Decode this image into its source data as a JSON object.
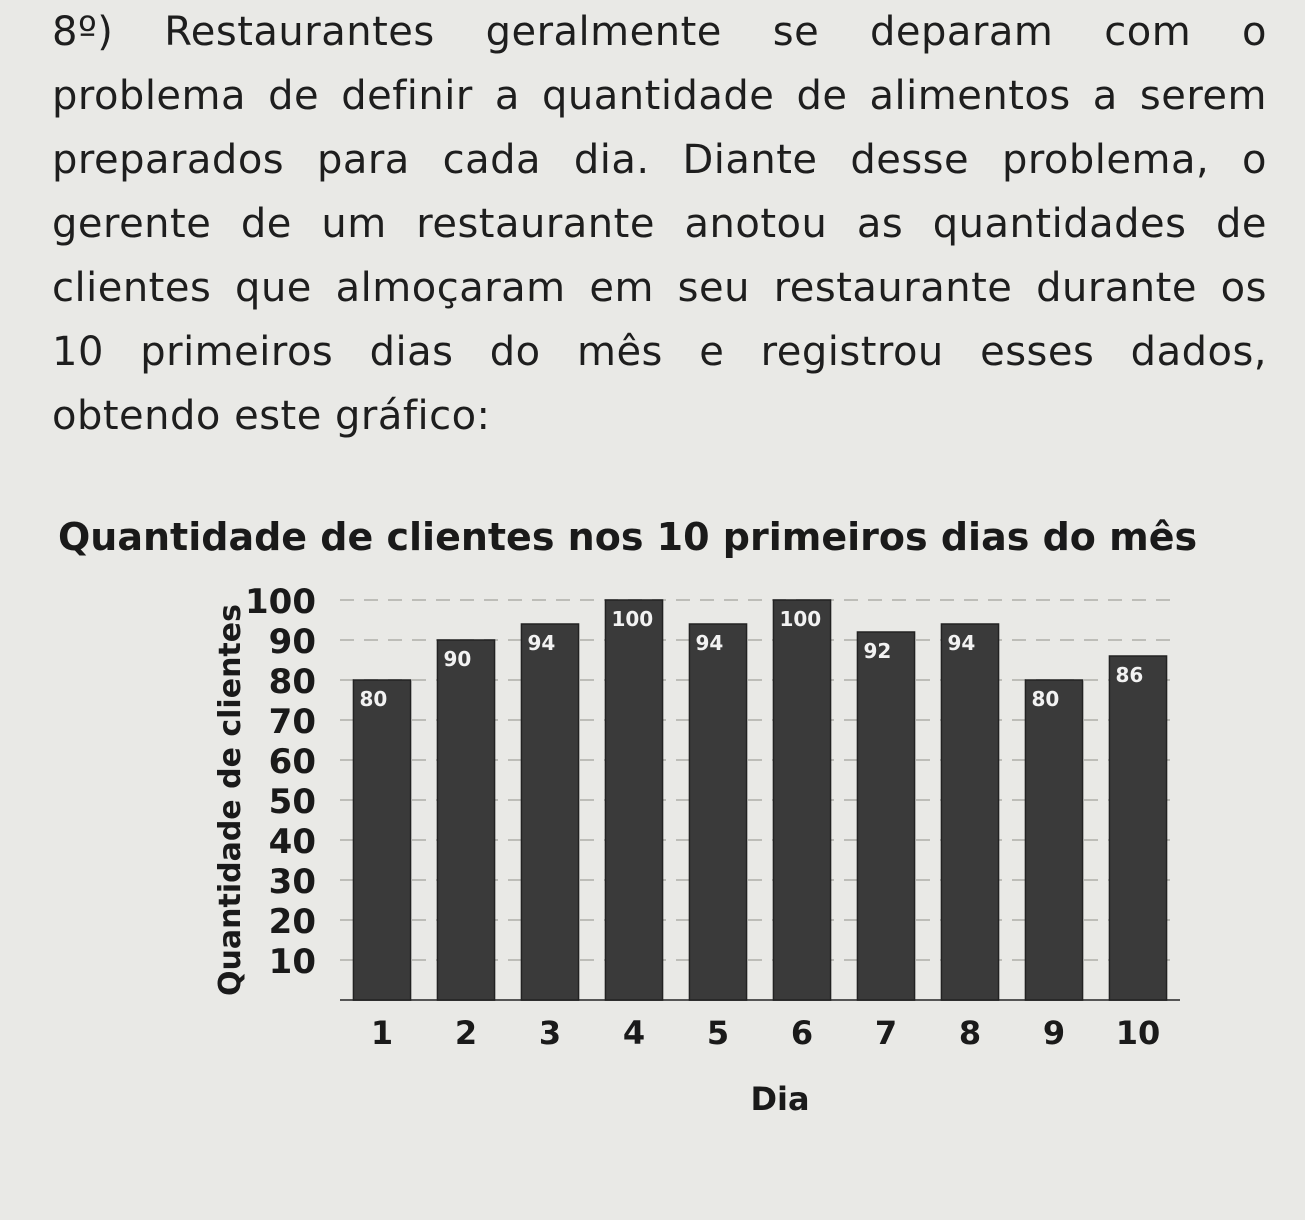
{
  "question": {
    "lines": [
      "8º) Restaurantes geralmente se deparam com o",
      "problema de definir a quantidade de alimentos a serem",
      "preparados para cada dia. Diante desse problema, o",
      "gerente de um restaurante anotou as quantidades de",
      "clientes que almoçaram em seu restaurante durante os",
      "10 primeiros dias do mês e registrou esses dados,",
      "obtendo este gráfico:"
    ]
  },
  "chart_data": {
    "type": "bar",
    "title": "Quantidade de clientes nos 10 primeiros dias do mês",
    "xlabel": "Dia",
    "ylabel": "Quantidade de clientes",
    "categories": [
      "1",
      "2",
      "3",
      "4",
      "5",
      "6",
      "7",
      "8",
      "9",
      "10"
    ],
    "values": [
      80,
      90,
      94,
      100,
      94,
      100,
      92,
      94,
      80,
      86
    ],
    "data_labels": [
      "80",
      "90",
      "94",
      "100",
      "94",
      "100",
      "92",
      "94",
      "80",
      "86"
    ],
    "yticks": [
      "10",
      "20",
      "30",
      "40",
      "50",
      "60",
      "70",
      "80",
      "90",
      "100"
    ],
    "ylim": [
      0,
      100
    ],
    "grid": true,
    "bar_color": "#3a3a3a"
  }
}
